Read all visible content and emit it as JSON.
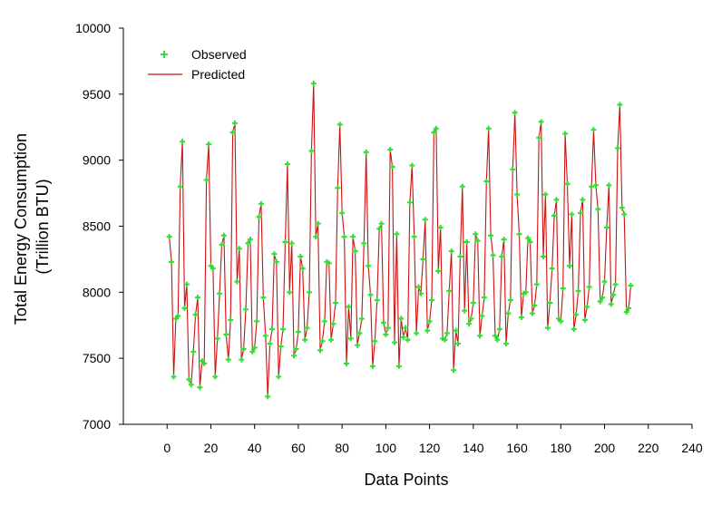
{
  "chart_data": {
    "type": "line",
    "xlabel": "Data Points",
    "ylabel": [
      "Total Energy Consumption",
      "(Trillion BTU)"
    ],
    "xlim": [
      -20,
      240
    ],
    "ylim": [
      7000,
      10000
    ],
    "xticks": [
      0,
      20,
      40,
      60,
      80,
      100,
      120,
      140,
      160,
      180,
      200,
      220,
      240
    ],
    "yticks": [
      7000,
      7500,
      8000,
      8500,
      9000,
      9500,
      10000
    ],
    "grid": false,
    "legend": {
      "position": "top-left",
      "entries": [
        "Observed",
        "Predicted"
      ]
    },
    "colors": {
      "observed": "#33dd33",
      "predicted": "#cc1111"
    },
    "series": [
      {
        "name": "Observed",
        "style": "markers"
      },
      {
        "name": "Predicted",
        "style": "line"
      }
    ],
    "x_start": 1,
    "values": [
      8420,
      8230,
      7360,
      7800,
      7820,
      8800,
      9140,
      7880,
      8060,
      7340,
      7300,
      7550,
      7830,
      7960,
      7280,
      7480,
      7460,
      8850,
      9120,
      8200,
      8180,
      7360,
      7650,
      7990,
      8360,
      8430,
      7680,
      7490,
      7790,
      9210,
      9280,
      8080,
      8330,
      7490,
      7570,
      7870,
      8370,
      8400,
      7550,
      7580,
      7780,
      8570,
      8670,
      7960,
      7670,
      7210,
      7610,
      7720,
      8290,
      8230,
      7360,
      7590,
      7720,
      8380,
      8970,
      8000,
      8370,
      7520,
      7570,
      7700,
      8270,
      8180,
      7640,
      7730,
      8000,
      9070,
      9580,
      8420,
      8520,
      7560,
      7630,
      7780,
      8230,
      8220,
      7640,
      7760,
      7920,
      8790,
      9270,
      8600,
      8420,
      7460,
      7890,
      7650,
      8420,
      8310,
      7600,
      7690,
      7800,
      8370,
      9060,
      8200,
      7980,
      7440,
      7630,
      7940,
      8480,
      8520,
      7770,
      7680,
      7730,
      9080,
      8950,
      7620,
      8440,
      7440,
      7800,
      7660,
      7730,
      7640,
      8680,
      8960,
      8420,
      7690,
      8040,
      7990,
      8250,
      8550,
      7710,
      7780,
      7940,
      9210,
      9240,
      8160,
      8490,
      7650,
      7640,
      7690,
      8010,
      8310,
      7410,
      7710,
      7610,
      8270,
      8800,
      7860,
      8380,
      7760,
      7800,
      7920,
      8440,
      8390,
      7670,
      7820,
      7960,
      8840,
      9240,
      8430,
      8280,
      7670,
      7640,
      7720,
      8270,
      8400,
      7610,
      7840,
      7940,
      8930,
      9360,
      8740,
      8440,
      7810,
      7990,
      8000,
      8410,
      8380,
      7840,
      7900,
      8060,
      9170,
      9290,
      8270,
      8740,
      7730,
      7920,
      8180,
      8580,
      8700,
      7800,
      7780,
      8030,
      9200,
      8820,
      8200,
      8590,
      7720,
      7830,
      8010,
      8600,
      8700,
      7790,
      7890,
      8040,
      8800,
      9230,
      8810,
      8630,
      7930,
      7960,
      8080,
      8490,
      8810,
      7910,
      7980,
      8060,
      9090,
      9420,
      8640,
      8590,
      7850,
      7880,
      8050
    ]
  }
}
